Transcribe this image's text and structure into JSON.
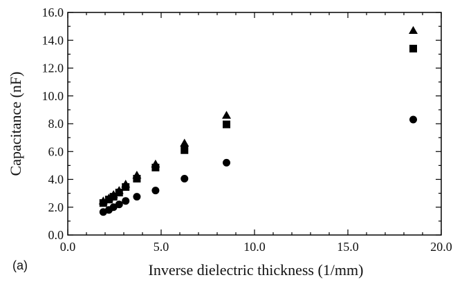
{
  "chart_data": {
    "type": "scatter",
    "xlabel": "Inverse dielectric thickness (1/mm)",
    "ylabel": "Capacitance (nF)",
    "panel_label": "(a)",
    "xlim": [
      0,
      20
    ],
    "ylim": [
      0,
      16
    ],
    "x_ticks": [
      0,
      5,
      10,
      15,
      20
    ],
    "y_ticks": [
      0,
      2,
      4,
      6,
      8,
      10,
      12,
      14,
      16
    ],
    "x_tick_labels": [
      "0.0",
      "5.0",
      "10.0",
      "15.0",
      "20.0"
    ],
    "y_tick_labels": [
      "0.0",
      "2.0",
      "4.0",
      "6.0",
      "8.0",
      "10.0",
      "12.0",
      "14.0",
      "16.0"
    ],
    "grid": false,
    "legend": "none",
    "series": [
      {
        "marker": "triangle",
        "color": "#000000",
        "points": [
          [
            1.9,
            2.45
          ],
          [
            2.2,
            2.65
          ],
          [
            2.45,
            2.9
          ],
          [
            2.75,
            3.2
          ],
          [
            3.1,
            3.65
          ],
          [
            3.7,
            4.3
          ],
          [
            4.7,
            5.1
          ],
          [
            6.25,
            6.6
          ],
          [
            8.5,
            8.6
          ],
          [
            18.5,
            14.7
          ]
        ]
      },
      {
        "marker": "square",
        "color": "#000000",
        "points": [
          [
            1.9,
            2.3
          ],
          [
            2.2,
            2.55
          ],
          [
            2.45,
            2.75
          ],
          [
            2.75,
            3.05
          ],
          [
            3.1,
            3.45
          ],
          [
            3.7,
            4.05
          ],
          [
            4.7,
            4.85
          ],
          [
            6.25,
            6.1
          ],
          [
            8.5,
            7.95
          ],
          [
            18.5,
            13.4
          ]
        ]
      },
      {
        "marker": "circle",
        "color": "#000000",
        "points": [
          [
            1.9,
            1.65
          ],
          [
            2.2,
            1.8
          ],
          [
            2.45,
            2.0
          ],
          [
            2.75,
            2.2
          ],
          [
            3.1,
            2.45
          ],
          [
            3.7,
            2.75
          ],
          [
            4.7,
            3.2
          ],
          [
            6.25,
            4.05
          ],
          [
            8.5,
            5.2
          ],
          [
            18.5,
            8.3
          ]
        ]
      }
    ]
  }
}
